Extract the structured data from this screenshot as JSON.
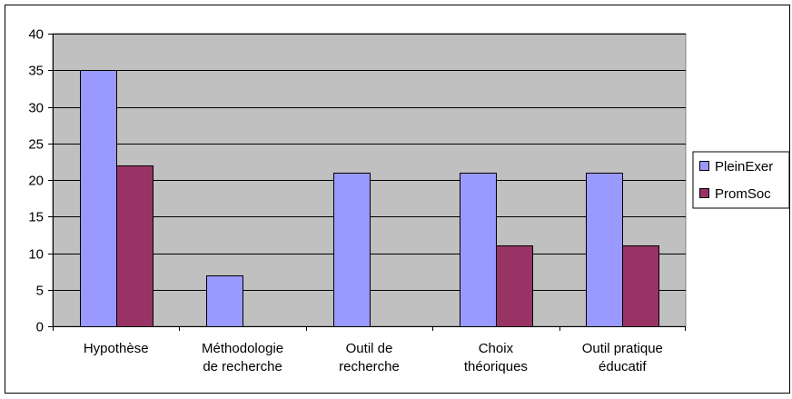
{
  "chart_data": {
    "type": "bar",
    "categories": [
      [
        "Hypothèse"
      ],
      [
        "Méthodologie",
        "de recherche"
      ],
      [
        "Outil de",
        "recherche"
      ],
      [
        "Choix",
        "théoriques"
      ],
      [
        "Outil pratique",
        "éducatif"
      ]
    ],
    "series": [
      {
        "name": "PleinExer",
        "color": "#9999ff",
        "values": [
          35,
          7,
          21,
          21,
          21
        ]
      },
      {
        "name": "PromSoc",
        "color": "#993366",
        "values": [
          22,
          0,
          0,
          11,
          11
        ]
      }
    ],
    "ylim": [
      0,
      40
    ],
    "yticks": [
      0,
      5,
      10,
      15,
      20,
      25,
      30,
      35,
      40
    ],
    "plot_background": "#c0c0c0",
    "grid": true,
    "legend_position": "right"
  }
}
